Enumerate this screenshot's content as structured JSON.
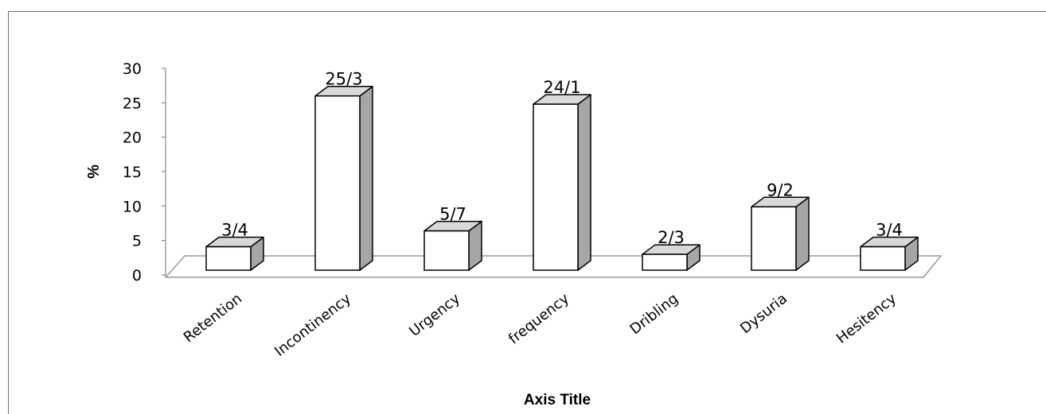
{
  "chart_data": {
    "type": "bar",
    "categories": [
      "Retention",
      "Incontinency",
      "Urgency",
      "frequency",
      "Dribling",
      "Dysuria",
      "Hesitency"
    ],
    "values": [
      3.4,
      25.3,
      5.7,
      24.1,
      2.3,
      9.2,
      3.4
    ],
    "data_labels": [
      "3/4",
      "25/3",
      "5/7",
      "24/1",
      "2/3",
      "9/2",
      "3/4"
    ],
    "title": "",
    "xlabel": "Axis Title",
    "ylabel": "%",
    "ylim": [
      0,
      30
    ],
    "yticks": [
      "0",
      "5",
      "10",
      "15",
      "20",
      "25",
      "30"
    ],
    "grid": false,
    "legend": "none",
    "style": "3d-column",
    "colors": {
      "front": "#ffffff",
      "side": "#a6a6a6",
      "top": "#d9d9d9",
      "stroke": "#000000",
      "floor": "#9a9a9a"
    }
  }
}
